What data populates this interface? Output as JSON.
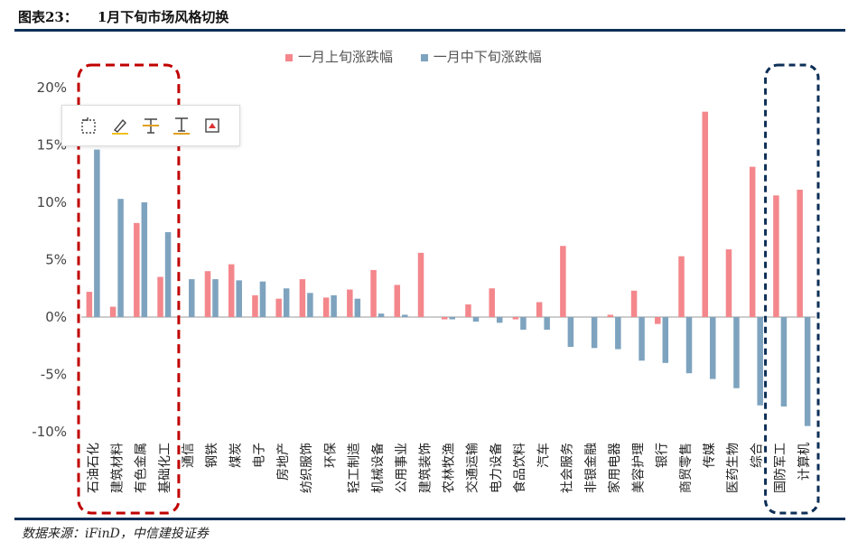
{
  "header": {
    "figure_label": "图表23：",
    "title": "1月下旬市场风格切换"
  },
  "source": "数据来源：iFinD，中信建投证券",
  "colors": {
    "series1": "#f4878c",
    "series2": "#7ea3bf",
    "accent_rule": "#0d2f57",
    "highlight_left": "#c00000",
    "highlight_right": "#0d2f57"
  },
  "toolbar": {
    "icons": [
      "select-area-icon",
      "highlight-pen-icon",
      "text-strike-icon",
      "text-underline-icon",
      "screenshot-icon"
    ]
  },
  "chart_data": {
    "type": "bar",
    "title": "",
    "xlabel": "",
    "ylabel": "",
    "ylim": [
      -10,
      20
    ],
    "yticks": [
      -10,
      -5,
      0,
      5,
      10,
      15,
      20
    ],
    "ytick_labels": [
      "-10%",
      "-5%",
      "0%",
      "5%",
      "10%",
      "15%",
      "20%"
    ],
    "grid": false,
    "legend_position": "top-center",
    "categories": [
      "石油石化",
      "建筑材料",
      "有色金属",
      "基础化工",
      "通信",
      "钢铁",
      "煤炭",
      "电子",
      "房地产",
      "纺织服饰",
      "环保",
      "轻工制造",
      "机械设备",
      "公用事业",
      "建筑装饰",
      "农林牧渔",
      "交通运输",
      "电力设备",
      "食品饮料",
      "汽车",
      "社会服务",
      "非银金融",
      "家用电器",
      "美容护理",
      "银行",
      "商贸零售",
      "传媒",
      "医药生物",
      "综合",
      "国防军工",
      "计算机"
    ],
    "series": [
      {
        "name": "一月上旬涨跌幅",
        "values": [
          2.2,
          0.9,
          8.2,
          3.5,
          0.0,
          4.0,
          4.6,
          1.9,
          1.6,
          3.3,
          1.7,
          2.4,
          4.1,
          2.8,
          5.6,
          -0.2,
          1.1,
          2.5,
          -0.2,
          1.3,
          6.2,
          0.0,
          0.2,
          2.3,
          -0.6,
          5.3,
          17.9,
          5.9,
          13.1,
          10.6,
          11.1
        ]
      },
      {
        "name": "一月中下旬涨跌幅",
        "values": [
          14.6,
          10.3,
          10.0,
          7.4,
          3.3,
          3.3,
          3.2,
          3.1,
          2.5,
          2.1,
          1.9,
          1.6,
          0.3,
          0.2,
          0.0,
          -0.2,
          -0.4,
          -0.5,
          -1.1,
          -1.1,
          -2.6,
          -2.7,
          -2.8,
          -3.8,
          -4.0,
          -4.9,
          -5.4,
          -6.2,
          -7.7,
          -7.8,
          -9.5
        ]
      }
    ],
    "highlights": [
      {
        "from": 0,
        "to": 3,
        "style": "red-dashed"
      },
      {
        "from": 29,
        "to": 30,
        "style": "navy-dashed"
      }
    ]
  }
}
